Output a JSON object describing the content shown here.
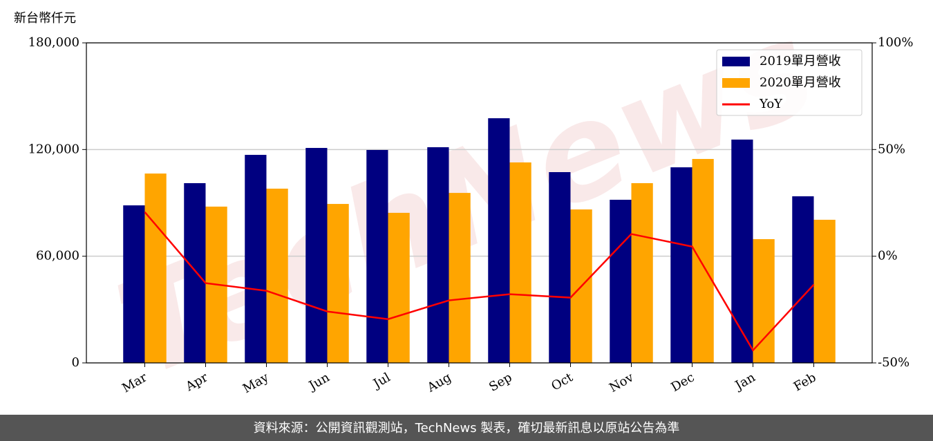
{
  "chart_data": {
    "type": "bar_line",
    "y_label": "新台幣仟元",
    "watermark": "TechNews",
    "footer": "資料來源：公開資訊觀測站，TechNews 製表，確切最新訊息以原站公告為準",
    "categories": [
      "Mar",
      "Apr",
      "May",
      "Jun",
      "Jul",
      "Aug",
      "Sep",
      "Oct",
      "Nov",
      "Dec",
      "Jan",
      "Feb"
    ],
    "series": [
      {
        "name": "2019單月營收",
        "color": "#000080",
        "type": "bar",
        "values": [
          88600,
          101100,
          117000,
          120900,
          119750,
          121300,
          137600,
          107300,
          91750,
          110000,
          125600,
          93700
        ]
      },
      {
        "name": "2020單月營收",
        "color": "#ffa500",
        "type": "bar",
        "values": [
          106500,
          87900,
          98000,
          89400,
          84400,
          95600,
          112750,
          86300,
          101100,
          114700,
          69600,
          80500
        ]
      },
      {
        "name": "YoY",
        "color": "#ff0000",
        "type": "line",
        "axis": "y2",
        "values": [
          20.7,
          -12.6,
          -16.2,
          -25.9,
          -29.5,
          -20.7,
          -17.8,
          -19.4,
          10.4,
          4.5,
          -44.1,
          -13.3
        ]
      }
    ],
    "ylim": [
      0,
      180000
    ],
    "yticks": [
      0,
      {
        "value": 60000,
        "label": "60,000"
      },
      {
        "value": 120000,
        "label": "120,000"
      },
      {
        "value": 180000,
        "label": "180,000"
      }
    ],
    "y2lim": [
      -50,
      100
    ],
    "y2ticks": [
      {
        "value": -50,
        "label": "-50%"
      },
      {
        "value": 0,
        "label": "0%"
      },
      {
        "value": 50,
        "label": "50%"
      },
      {
        "value": 100,
        "label": "100%"
      }
    ],
    "grid": true,
    "legend": "upper right"
  }
}
